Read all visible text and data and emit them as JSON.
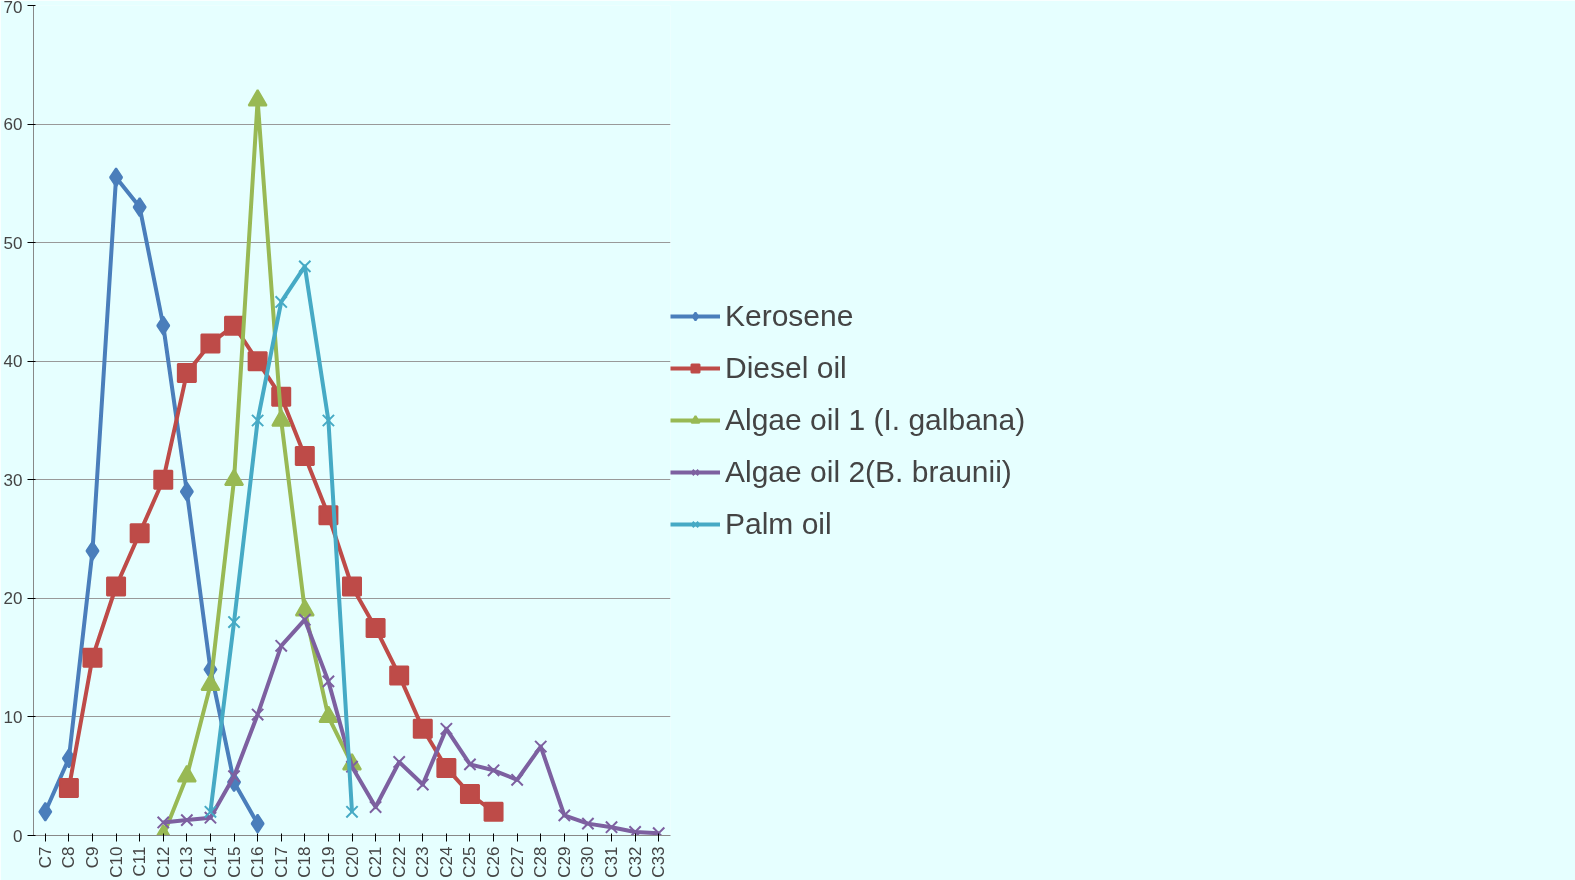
{
  "chart_data": {
    "type": "line",
    "categories": [
      "C7",
      "C8",
      "C9",
      "C10",
      "C11",
      "C12",
      "C13",
      "C14",
      "C15",
      "C16",
      "C17",
      "C18",
      "C19",
      "C20",
      "C21",
      "C22",
      "C23",
      "C24",
      "C25",
      "C26",
      "C27",
      "C28",
      "C29",
      "C30",
      "C31",
      "C32",
      "C33"
    ],
    "series": [
      {
        "name": "Kerosene",
        "color": "#4a7ebb",
        "marker": "diamond",
        "values": [
          2,
          6.5,
          24,
          55.5,
          53,
          43,
          29,
          14,
          4.5,
          1,
          null,
          null,
          null,
          null,
          null,
          null,
          null,
          null,
          null,
          null,
          null,
          null,
          null,
          null,
          null,
          null,
          null
        ]
      },
      {
        "name": "Diesel oil",
        "color": "#be4b48",
        "marker": "square",
        "values": [
          null,
          4,
          15,
          21,
          25.5,
          30,
          39,
          41.5,
          43,
          40,
          37,
          32,
          27,
          21,
          17.5,
          13.5,
          9,
          5.7,
          3.5,
          2,
          null,
          null,
          null,
          null,
          null,
          null,
          null
        ]
      },
      {
        "name": "Algae oil 1 (I. galbana)",
        "color": "#98b954",
        "marker": "triangle",
        "values": [
          null,
          null,
          null,
          null,
          null,
          0,
          5,
          12.7,
          30,
          62,
          35,
          19,
          10,
          6,
          null,
          null,
          null,
          null,
          null,
          null,
          null,
          null,
          null,
          null,
          null,
          null,
          null
        ]
      },
      {
        "name": "Algae oil 2(B. braunii)",
        "color": "#7d60a0",
        "marker": "cross",
        "values": [
          null,
          null,
          null,
          null,
          null,
          1.1,
          1.3,
          1.5,
          5,
          10.2,
          16,
          18.2,
          13,
          5.8,
          2.4,
          6.2,
          4.3,
          9,
          6,
          5.5,
          4.7,
          7.5,
          1.7,
          1,
          0.7,
          0.3,
          0.2
        ]
      },
      {
        "name": "Palm oil",
        "color": "#46aac5",
        "marker": "cross",
        "values": [
          null,
          null,
          null,
          null,
          null,
          null,
          null,
          2,
          18,
          35,
          45,
          48,
          35,
          2,
          null,
          null,
          null,
          null,
          null,
          null,
          null,
          null,
          null,
          null,
          null,
          null,
          null
        ]
      }
    ],
    "ylim": [
      0,
      70
    ],
    "yticks": [
      0,
      10,
      20,
      30,
      40,
      50,
      60,
      70
    ],
    "grid": "y",
    "legend": "right",
    "line_style": "solid"
  }
}
